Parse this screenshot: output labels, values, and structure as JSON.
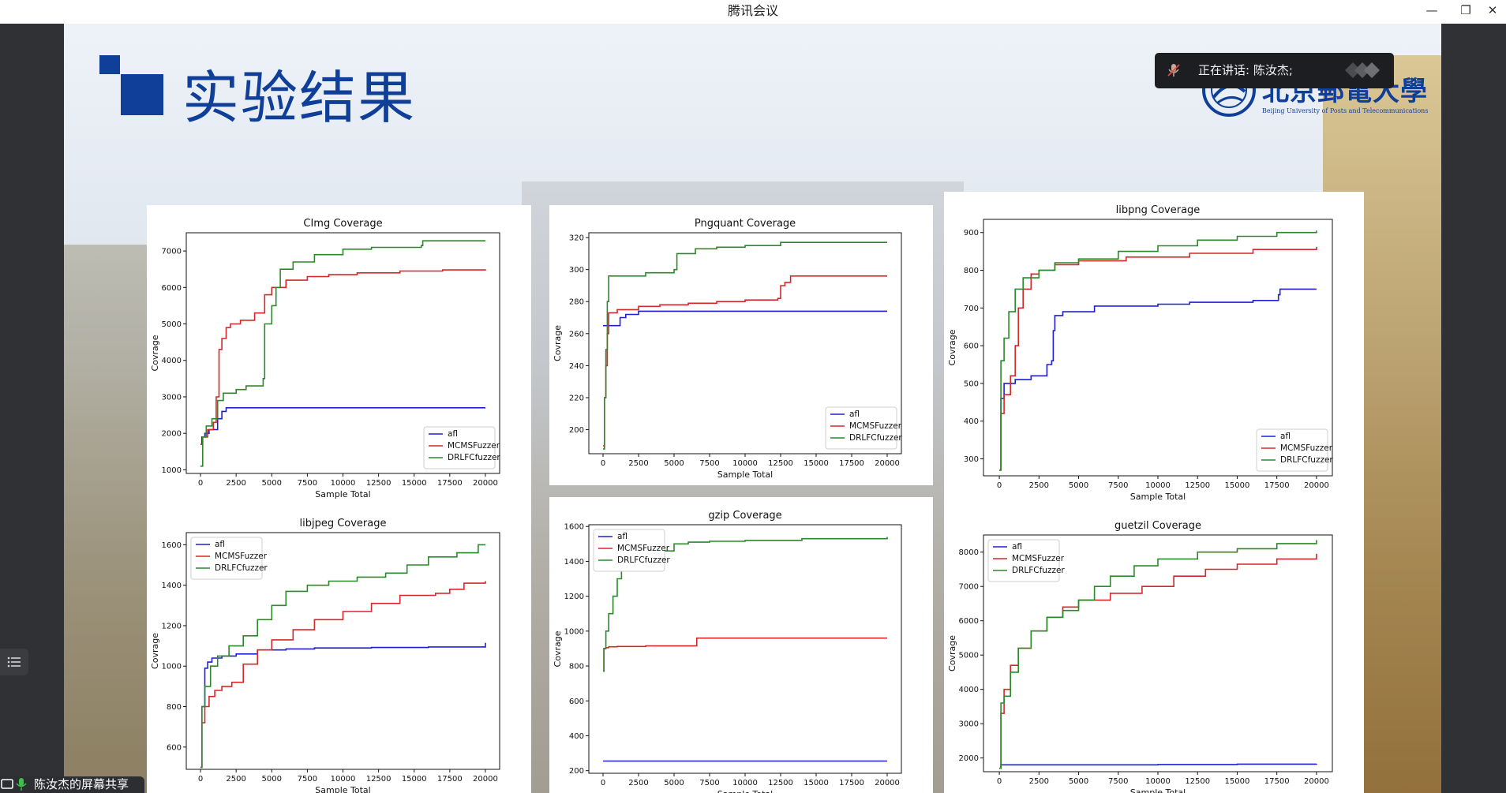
{
  "window": {
    "title": "腾讯会议"
  },
  "window_buttons": {
    "minimize": "—",
    "restore": "❐",
    "close": "✕"
  },
  "speaker": {
    "label": "正在讲话: 陈汝杰;"
  },
  "share": {
    "label": "陈汝杰的屏幕共享"
  },
  "slide": {
    "title": "实验结果",
    "logo_text": "北京郵電大學",
    "logo_subtext": "Beijing University of Posts and Telecommunications",
    "accent_color": "#0f3f98"
  },
  "series_colors": {
    "afl": "#1f1fd6",
    "MCMSFuzzer": "#d62728",
    "DRLFCfuzzer": "#2a8a2a"
  },
  "chart_data": [
    {
      "type": "line",
      "title": "CImg Coverage",
      "xlabel": "Sample Total",
      "ylabel": "Covrage",
      "xlim": [
        -1000,
        21000
      ],
      "ylim": [
        900,
        7500
      ],
      "xticks": [
        0,
        2500,
        5000,
        7500,
        10000,
        12500,
        15000,
        17500,
        20000
      ],
      "yticks": [
        1000,
        2000,
        3000,
        4000,
        5000,
        6000,
        7000
      ],
      "legend_position": "lower-right",
      "series": [
        {
          "name": "afl",
          "x": [
            0,
            100,
            300,
            600,
            1200,
            1500,
            1800,
            20000
          ],
          "y": [
            1700,
            1900,
            2000,
            2100,
            2400,
            2600,
            2700,
            2700
          ]
        },
        {
          "name": "MCMSFuzzer",
          "x": [
            0,
            150,
            500,
            900,
            1100,
            1300,
            1500,
            1800,
            2100,
            2800,
            3800,
            4500,
            5000,
            6000,
            7500,
            9000,
            11000,
            14000,
            17000,
            20000
          ],
          "y": [
            1700,
            1900,
            2100,
            2300,
            3000,
            4300,
            4600,
            4900,
            5000,
            5100,
            5300,
            5800,
            6000,
            6200,
            6300,
            6350,
            6400,
            6450,
            6480,
            6500
          ]
        },
        {
          "name": "DRLFCfuzzer",
          "x": [
            0,
            150,
            400,
            800,
            1200,
            1600,
            2500,
            3200,
            4400,
            4500,
            5000,
            5300,
            5600,
            6500,
            8000,
            10000,
            12000,
            15500,
            15600,
            20000
          ],
          "y": [
            1100,
            1900,
            2200,
            2400,
            2900,
            3100,
            3200,
            3300,
            3500,
            5000,
            5500,
            6000,
            6500,
            6700,
            6900,
            7050,
            7100,
            7150,
            7280,
            7280
          ]
        }
      ]
    },
    {
      "type": "line",
      "title": "Pngquant Coverage",
      "xlabel": "Sample Total",
      "ylabel": "Covrage",
      "xlim": [
        -1000,
        21000
      ],
      "ylim": [
        185,
        323
      ],
      "xticks": [
        0,
        2500,
        5000,
        7500,
        10000,
        12500,
        15000,
        17500,
        20000
      ],
      "yticks": [
        200,
        220,
        240,
        260,
        280,
        300,
        320
      ],
      "legend_position": "lower-right",
      "series": [
        {
          "name": "afl",
          "x": [
            0,
            1000,
            1200,
            1600,
            2500,
            20000
          ],
          "y": [
            265,
            265,
            270,
            272,
            274,
            274
          ]
        },
        {
          "name": "MCMSFuzzer",
          "x": [
            0,
            100,
            200,
            300,
            400,
            1000,
            2500,
            4000,
            6000,
            8000,
            10000,
            12300,
            12500,
            12800,
            13200,
            20000
          ],
          "y": [
            190,
            220,
            240,
            260,
            273,
            275,
            277,
            278,
            279,
            280,
            281,
            282,
            290,
            292,
            296,
            296
          ]
        },
        {
          "name": "DRLFCfuzzer",
          "x": [
            0,
            100,
            200,
            300,
            400,
            3000,
            5000,
            5200,
            6500,
            8000,
            10000,
            12500,
            20000
          ],
          "y": [
            188,
            220,
            250,
            280,
            296,
            298,
            300,
            310,
            313,
            314,
            315,
            317,
            317
          ]
        }
      ]
    },
    {
      "type": "line",
      "title": "libpng Coverage",
      "xlabel": "Sample Total",
      "ylabel": "Covrage",
      "xlim": [
        -1000,
        21000
      ],
      "ylim": [
        255,
        935
      ],
      "xticks": [
        0,
        2500,
        5000,
        7500,
        10000,
        12500,
        15000,
        17500,
        20000
      ],
      "yticks": [
        300,
        400,
        500,
        600,
        700,
        800,
        900
      ],
      "legend_position": "lower-right",
      "series": [
        {
          "name": "afl",
          "x": [
            0,
            100,
            300,
            1000,
            2000,
            3000,
            3300,
            3400,
            3500,
            4000,
            6000,
            10000,
            12000,
            16000,
            17600,
            17700,
            20000
          ],
          "y": [
            270,
            460,
            500,
            510,
            520,
            550,
            560,
            640,
            680,
            690,
            705,
            710,
            715,
            720,
            735,
            750,
            750
          ]
        },
        {
          "name": "MCMSFuzzer",
          "x": [
            0,
            100,
            300,
            700,
            1000,
            1200,
            1500,
            2000,
            2500,
            3500,
            5000,
            8000,
            12000,
            16000,
            20000
          ],
          "y": [
            270,
            420,
            470,
            520,
            600,
            700,
            750,
            790,
            800,
            815,
            825,
            835,
            845,
            855,
            862
          ]
        },
        {
          "name": "DRLFCfuzzer",
          "x": [
            0,
            100,
            300,
            600,
            1000,
            1500,
            2500,
            3500,
            5000,
            7500,
            10000,
            12500,
            15000,
            17500,
            20000
          ],
          "y": [
            270,
            560,
            620,
            690,
            750,
            780,
            800,
            820,
            830,
            850,
            865,
            880,
            890,
            900,
            905
          ]
        }
      ]
    },
    {
      "type": "line",
      "title": "libjpeg Coverage",
      "xlabel": "Sample Total",
      "ylabel": "Covrage",
      "xlim": [
        -1000,
        21000
      ],
      "ylim": [
        490,
        1660
      ],
      "xticks": [
        0,
        2500,
        5000,
        7500,
        10000,
        12500,
        15000,
        17500,
        20000
      ],
      "yticks": [
        600,
        800,
        1000,
        1200,
        1400,
        1600
      ],
      "legend_position": "upper-left",
      "series": [
        {
          "name": "afl",
          "x": [
            0,
            100,
            300,
            500,
            800,
            1500,
            2500,
            4000,
            6000,
            8000,
            12000,
            16000,
            19800,
            20000
          ],
          "y": [
            500,
            800,
            990,
            1020,
            1040,
            1050,
            1060,
            1080,
            1085,
            1090,
            1092,
            1095,
            1095,
            1115
          ]
        },
        {
          "name": "MCMSFuzzer",
          "x": [
            0,
            100,
            300,
            600,
            1000,
            1500,
            2200,
            3000,
            4000,
            5000,
            6500,
            8000,
            10000,
            12000,
            14000,
            16500,
            17500,
            18500,
            20000
          ],
          "y": [
            500,
            720,
            800,
            850,
            880,
            900,
            920,
            1010,
            1080,
            1130,
            1180,
            1230,
            1270,
            1310,
            1350,
            1360,
            1380,
            1410,
            1420
          ]
        },
        {
          "name": "DRLFCfuzzer",
          "x": [
            0,
            100,
            300,
            700,
            1200,
            2000,
            3000,
            4000,
            5000,
            6000,
            7500,
            9000,
            11000,
            13000,
            14500,
            16000,
            18000,
            19500,
            20000
          ],
          "y": [
            500,
            800,
            900,
            1000,
            1050,
            1100,
            1150,
            1230,
            1300,
            1370,
            1400,
            1420,
            1440,
            1460,
            1500,
            1540,
            1560,
            1600,
            1600
          ]
        }
      ]
    },
    {
      "type": "line",
      "title": "gzip Coverage",
      "xlabel": "Sample Total",
      "ylabel": "Covrage",
      "xlim": [
        -1000,
        21000
      ],
      "ylim": [
        185,
        1610
      ],
      "xticks": [
        0,
        2500,
        5000,
        7500,
        10000,
        12500,
        15000,
        17500,
        20000
      ],
      "yticks": [
        200,
        400,
        600,
        800,
        1000,
        1200,
        1400,
        1600
      ],
      "legend_position": "upper-left",
      "series": [
        {
          "name": "afl",
          "x": [
            0,
            20000
          ],
          "y": [
            255,
            255
          ]
        },
        {
          "name": "MCMSFuzzer",
          "x": [
            0,
            60,
            200,
            400,
            1000,
            3000,
            6500,
            6600,
            20000
          ],
          "y": [
            770,
            900,
            905,
            910,
            912,
            915,
            915,
            960,
            960
          ]
        },
        {
          "name": "DRLFCfuzzer",
          "x": [
            0,
            60,
            200,
            400,
            700,
            1000,
            1300,
            1600,
            2000,
            2500,
            3500,
            5000,
            6000,
            7500,
            10000,
            14000,
            20000
          ],
          "y": [
            770,
            900,
            1000,
            1100,
            1200,
            1300,
            1380,
            1420,
            1440,
            1450,
            1460,
            1500,
            1510,
            1515,
            1520,
            1530,
            1540
          ]
        }
      ]
    },
    {
      "type": "line",
      "title": "guetzil Coverage",
      "xlabel": "Sample Total",
      "ylabel": "Covrage",
      "xlim": [
        -1000,
        21000
      ],
      "ylim": [
        1600,
        8500
      ],
      "xticks": [
        0,
        2500,
        5000,
        7500,
        10000,
        12500,
        15000,
        17500,
        20000
      ],
      "yticks": [
        2000,
        3000,
        4000,
        5000,
        6000,
        7000,
        8000
      ],
      "legend_position": "upper-left",
      "series": [
        {
          "name": "afl",
          "x": [
            0,
            100,
            5000,
            10000,
            15000,
            20000
          ],
          "y": [
            1700,
            1800,
            1800,
            1810,
            1820,
            1830
          ]
        },
        {
          "name": "MCMSFuzzer",
          "x": [
            0,
            100,
            300,
            700,
            1200,
            2000,
            3000,
            4000,
            5000,
            7000,
            9000,
            11000,
            13000,
            15000,
            17500,
            20000
          ],
          "y": [
            1700,
            3300,
            4000,
            4700,
            5200,
            5700,
            6100,
            6400,
            6600,
            6800,
            7000,
            7300,
            7500,
            7650,
            7800,
            7950
          ]
        },
        {
          "name": "DRLFCfuzzer",
          "x": [
            0,
            100,
            300,
            700,
            1200,
            2000,
            3000,
            4000,
            5000,
            6000,
            7000,
            8500,
            10000,
            12500,
            15000,
            17500,
            20000
          ],
          "y": [
            1700,
            3600,
            3800,
            4500,
            5200,
            5700,
            6100,
            6300,
            6600,
            7000,
            7300,
            7600,
            7800,
            8000,
            8100,
            8250,
            8350
          ]
        }
      ]
    }
  ]
}
